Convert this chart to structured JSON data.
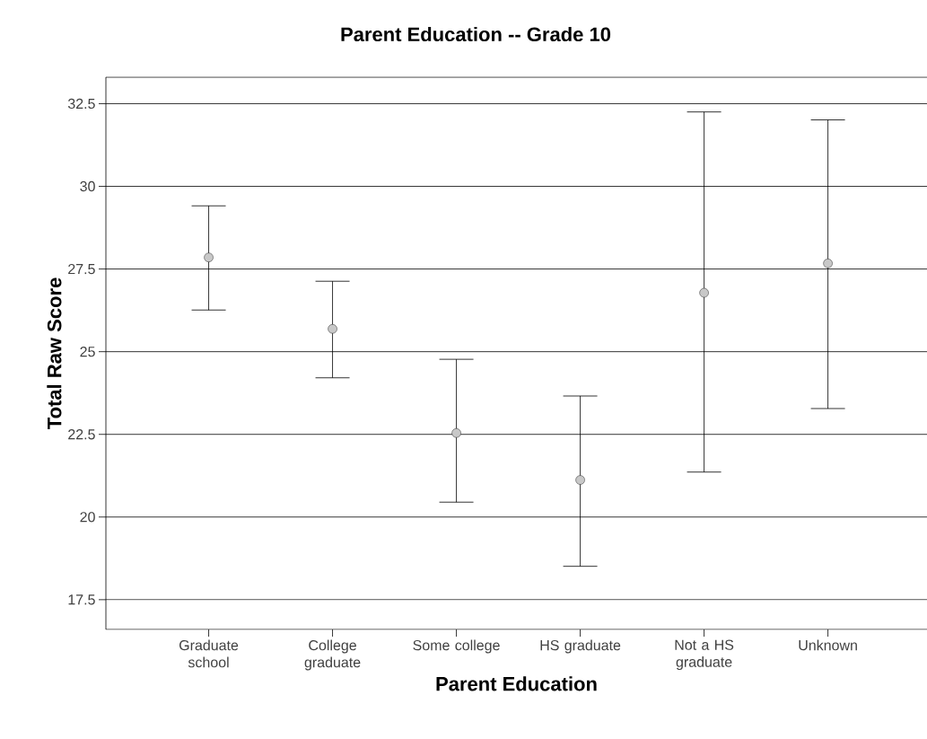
{
  "chart_data": {
    "type": "scatter",
    "title": "Parent Education -- Grade 10",
    "xlabel": "Parent Education",
    "ylabel": "Total Raw Score",
    "categories": [
      "Graduate school",
      "College graduate",
      "Some college",
      "HS graduate",
      "Not a HS graduate",
      "Unknown"
    ],
    "values": [
      27.85,
      25.69,
      22.54,
      21.12,
      26.78,
      27.67
    ],
    "errors": [
      [
        26.26,
        29.41
      ],
      [
        24.21,
        27.13
      ],
      [
        20.45,
        24.77
      ],
      [
        18.51,
        23.66
      ],
      [
        21.36,
        32.25
      ],
      [
        23.28,
        32.01
      ]
    ],
    "color": "#c8c8c8",
    "marker": "circle",
    "ylim": [
      16.6,
      33.3
    ],
    "yticks": [
      17.5,
      20,
      22.5,
      25,
      27.5,
      30,
      32.5
    ],
    "grid": "y"
  }
}
